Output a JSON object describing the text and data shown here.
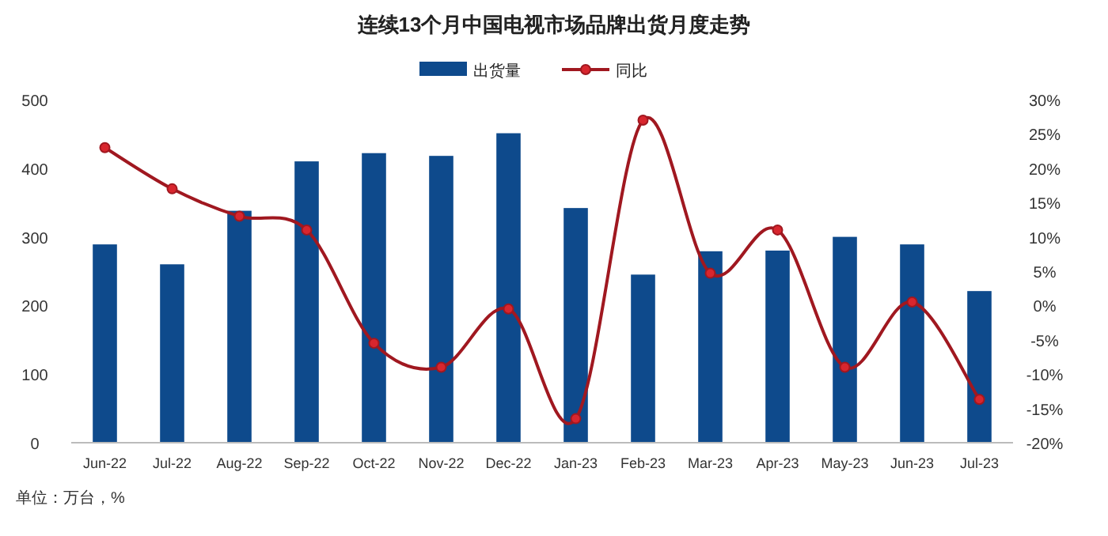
{
  "chart_data": {
    "type": "bar",
    "title": "连续13个月中国电视市场品牌出货月度走势",
    "categories": [
      "Jun-22",
      "Jul-22",
      "Aug-22",
      "Sep-22",
      "Oct-22",
      "Nov-22",
      "Dec-22",
      "Jan-23",
      "Feb-23",
      "Mar-23",
      "Apr-23",
      "May-23",
      "Jun-23",
      "Jul-23"
    ],
    "series": [
      {
        "name": "出货量",
        "color": "#0e4a8c",
        "values": [
          289,
          260,
          338,
          410,
          422,
          418,
          451,
          342,
          245,
          279,
          280,
          300,
          289,
          221
        ]
      },
      {
        "name": "同比",
        "type": "line",
        "axis": "y2",
        "color": "#a01820",
        "marker": "circle",
        "values": [
          23,
          17,
          13,
          11,
          -5.5,
          -9,
          -0.5,
          -16.5,
          27,
          4.7,
          11,
          -9,
          0.5,
          -13.7
        ]
      }
    ],
    "ylim": [
      0,
      500
    ],
    "yticks": [
      0,
      100,
      200,
      300,
      400,
      500
    ],
    "y2lim": [
      -20,
      30
    ],
    "y2ticks": [
      {
        "value": -20,
        "label": "-20%"
      },
      {
        "value": -15,
        "label": "-15%"
      },
      {
        "value": -10,
        "label": "-10%"
      },
      {
        "value": -5,
        "label": "-5%"
      },
      {
        "value": 0,
        "label": "0%"
      },
      {
        "value": 5,
        "label": "5%"
      },
      {
        "value": 10,
        "label": "10%"
      },
      {
        "value": 15,
        "label": "15%"
      },
      {
        "value": 20,
        "label": "20%"
      },
      {
        "value": 25,
        "label": "25%"
      },
      {
        "value": 30,
        "label": "30%"
      }
    ],
    "legend": "top",
    "annotations": [
      "单位：万台，%"
    ]
  }
}
